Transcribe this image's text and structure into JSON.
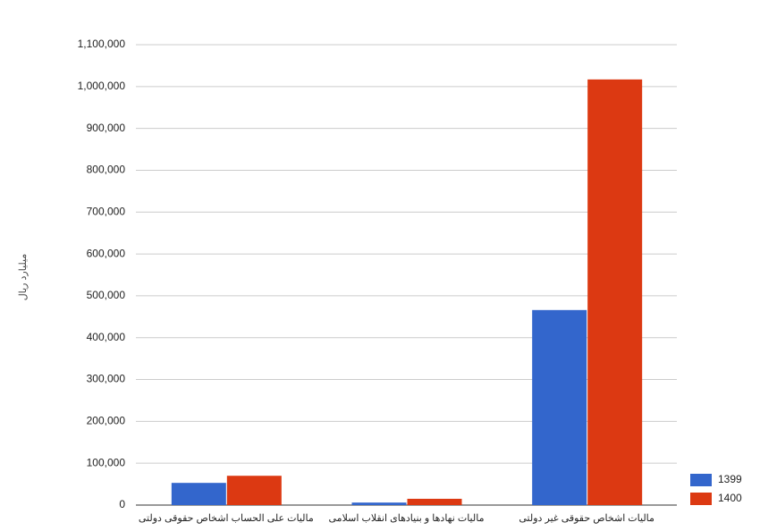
{
  "chart_data": {
    "type": "bar",
    "y_label": "میلیارد ریال",
    "categories": [
      "مالیات علی الحساب اشخاص حقوقی دولتی",
      "مالیات نهادها و بنیادهای انقلاب اسلامی",
      "مالیات اشخاص حقوقی غیر دولتی"
    ],
    "series": [
      {
        "name": "1399",
        "color": "#3366cc",
        "values": [
          53000,
          6000,
          466000
        ]
      },
      {
        "name": "1400",
        "color": "#dc3912",
        "values": [
          70000,
          15000,
          1017000
        ]
      }
    ],
    "ylim": [
      0,
      1100000
    ],
    "yticks": [
      0,
      {
        "value": 100000,
        "label": "100,000"
      },
      {
        "value": 200000,
        "label": "200,000"
      },
      {
        "value": 300000,
        "label": "300,000"
      },
      {
        "value": 400000,
        "label": "400,000"
      },
      {
        "value": 500000,
        "label": "500,000"
      },
      {
        "value": 600000,
        "label": "600,000"
      },
      {
        "value": 700000,
        "label": "700,000"
      },
      {
        "value": 800000,
        "label": "800,000"
      },
      {
        "value": 900000,
        "label": "900,000"
      },
      {
        "value": 1000000,
        "label": "1,000,000"
      },
      {
        "value": 1100000,
        "label": "1,100,000"
      }
    ],
    "grid": true,
    "legend": "bottom-right"
  }
}
